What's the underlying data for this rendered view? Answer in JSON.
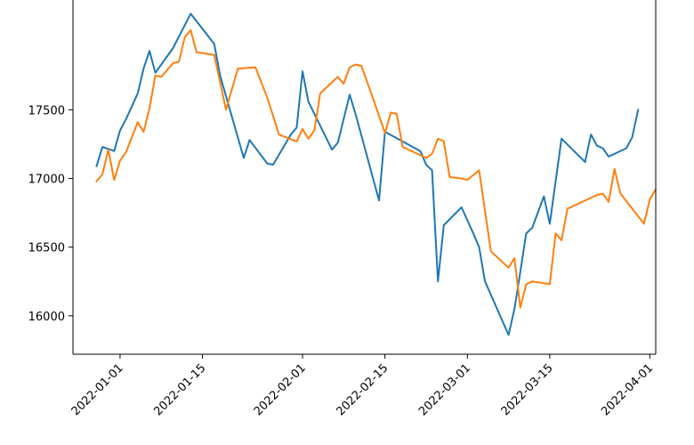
{
  "chart_data": {
    "type": "line",
    "title": "",
    "xlabel": "",
    "ylabel": "",
    "xlim": [
      "2021-12-24",
      "2022-04-02"
    ],
    "ylim": [
      15720,
      18300
    ],
    "grid": false,
    "legend": "none",
    "x_ticks": [
      "2022-01-01",
      "2022-01-15",
      "2022-02-01",
      "2022-02-15",
      "2022-03-01",
      "2022-03-15",
      "2022-04-01"
    ],
    "y_ticks": [
      16000,
      16500,
      17000,
      17500
    ],
    "series": [
      {
        "color": "#1f77b4",
        "points": [
          [
            "2021-12-28",
            17090
          ],
          [
            "2021-12-29",
            17230
          ],
          [
            "2021-12-31",
            17200
          ],
          [
            "2022-01-01",
            17350
          ],
          [
            "2022-01-02",
            17430
          ],
          [
            "2022-01-04",
            17620
          ],
          [
            "2022-01-05",
            17800
          ],
          [
            "2022-01-06",
            17930
          ],
          [
            "2022-01-07",
            17770
          ],
          [
            "2022-01-10",
            17950
          ],
          [
            "2022-01-13",
            18200
          ],
          [
            "2022-01-17",
            17980
          ],
          [
            "2022-01-18",
            17750
          ],
          [
            "2022-01-19",
            17600
          ],
          [
            "2022-01-22",
            17150
          ],
          [
            "2022-01-23",
            17280
          ],
          [
            "2022-01-26",
            17110
          ],
          [
            "2022-01-27",
            17100
          ],
          [
            "2022-01-30",
            17320
          ],
          [
            "2022-01-31",
            17370
          ],
          [
            "2022-02-01",
            17780
          ],
          [
            "2022-02-02",
            17560
          ],
          [
            "2022-02-06",
            17210
          ],
          [
            "2022-02-07",
            17260
          ],
          [
            "2022-02-09",
            17610
          ],
          [
            "2022-02-10",
            17470
          ],
          [
            "2022-02-14",
            16840
          ],
          [
            "2022-02-15",
            17340
          ],
          [
            "2022-02-21",
            17200
          ],
          [
            "2022-02-22",
            17100
          ],
          [
            "2022-02-23",
            17060
          ],
          [
            "2022-02-24",
            16250
          ],
          [
            "2022-02-25",
            16660
          ],
          [
            "2022-02-28",
            16790
          ],
          [
            "2022-03-02",
            16600
          ],
          [
            "2022-03-03",
            16500
          ],
          [
            "2022-03-04",
            16250
          ],
          [
            "2022-03-08",
            15860
          ],
          [
            "2022-03-09",
            16050
          ],
          [
            "2022-03-10",
            16320
          ],
          [
            "2022-03-11",
            16600
          ],
          [
            "2022-03-12",
            16640
          ],
          [
            "2022-03-14",
            16870
          ],
          [
            "2022-03-15",
            16670
          ],
          [
            "2022-03-17",
            17290
          ],
          [
            "2022-03-21",
            17120
          ],
          [
            "2022-03-22",
            17320
          ],
          [
            "2022-03-23",
            17240
          ],
          [
            "2022-03-24",
            17220
          ],
          [
            "2022-03-25",
            17160
          ],
          [
            "2022-03-28",
            17220
          ],
          [
            "2022-03-29",
            17300
          ],
          [
            "2022-03-30",
            17500
          ]
        ]
      },
      {
        "color": "#ff7f0e",
        "points": [
          [
            "2021-12-28",
            16980
          ],
          [
            "2021-12-29",
            17030
          ],
          [
            "2021-12-30",
            17210
          ],
          [
            "2021-12-31",
            16990
          ],
          [
            "2022-01-01",
            17130
          ],
          [
            "2022-01-02",
            17190
          ],
          [
            "2022-01-04",
            17410
          ],
          [
            "2022-01-05",
            17340
          ],
          [
            "2022-01-06",
            17510
          ],
          [
            "2022-01-07",
            17750
          ],
          [
            "2022-01-08",
            17740
          ],
          [
            "2022-01-10",
            17840
          ],
          [
            "2022-01-11",
            17850
          ],
          [
            "2022-01-12",
            18030
          ],
          [
            "2022-01-13",
            18080
          ],
          [
            "2022-01-14",
            17920
          ],
          [
            "2022-01-17",
            17900
          ],
          [
            "2022-01-19",
            17500
          ],
          [
            "2022-01-21",
            17800
          ],
          [
            "2022-01-24",
            17810
          ],
          [
            "2022-01-26",
            17590
          ],
          [
            "2022-01-28",
            17320
          ],
          [
            "2022-01-31",
            17270
          ],
          [
            "2022-02-01",
            17360
          ],
          [
            "2022-02-02",
            17290
          ],
          [
            "2022-02-03",
            17350
          ],
          [
            "2022-02-04",
            17620
          ],
          [
            "2022-02-07",
            17740
          ],
          [
            "2022-02-08",
            17690
          ],
          [
            "2022-02-09",
            17810
          ],
          [
            "2022-02-10",
            17830
          ],
          [
            "2022-02-11",
            17820
          ],
          [
            "2022-02-13",
            17580
          ],
          [
            "2022-02-15",
            17330
          ],
          [
            "2022-02-16",
            17480
          ],
          [
            "2022-02-17",
            17470
          ],
          [
            "2022-02-18",
            17230
          ],
          [
            "2022-02-22",
            17150
          ],
          [
            "2022-02-23",
            17180
          ],
          [
            "2022-02-24",
            17290
          ],
          [
            "2022-02-25",
            17270
          ],
          [
            "2022-02-26",
            17010
          ],
          [
            "2022-02-28",
            17000
          ],
          [
            "2022-03-01",
            16990
          ],
          [
            "2022-03-03",
            17060
          ],
          [
            "2022-03-05",
            16470
          ],
          [
            "2022-03-08",
            16350
          ],
          [
            "2022-03-09",
            16420
          ],
          [
            "2022-03-10",
            16060
          ],
          [
            "2022-03-11",
            16230
          ],
          [
            "2022-03-12",
            16250
          ],
          [
            "2022-03-15",
            16230
          ],
          [
            "2022-03-16",
            16600
          ],
          [
            "2022-03-17",
            16550
          ],
          [
            "2022-03-18",
            16780
          ],
          [
            "2022-03-23",
            16880
          ],
          [
            "2022-03-24",
            16890
          ],
          [
            "2022-03-25",
            16830
          ],
          [
            "2022-03-26",
            17070
          ],
          [
            "2022-03-27",
            16890
          ],
          [
            "2022-03-31",
            16670
          ],
          [
            "2022-04-01",
            16850
          ],
          [
            "2022-04-02",
            16920
          ]
        ]
      }
    ]
  }
}
